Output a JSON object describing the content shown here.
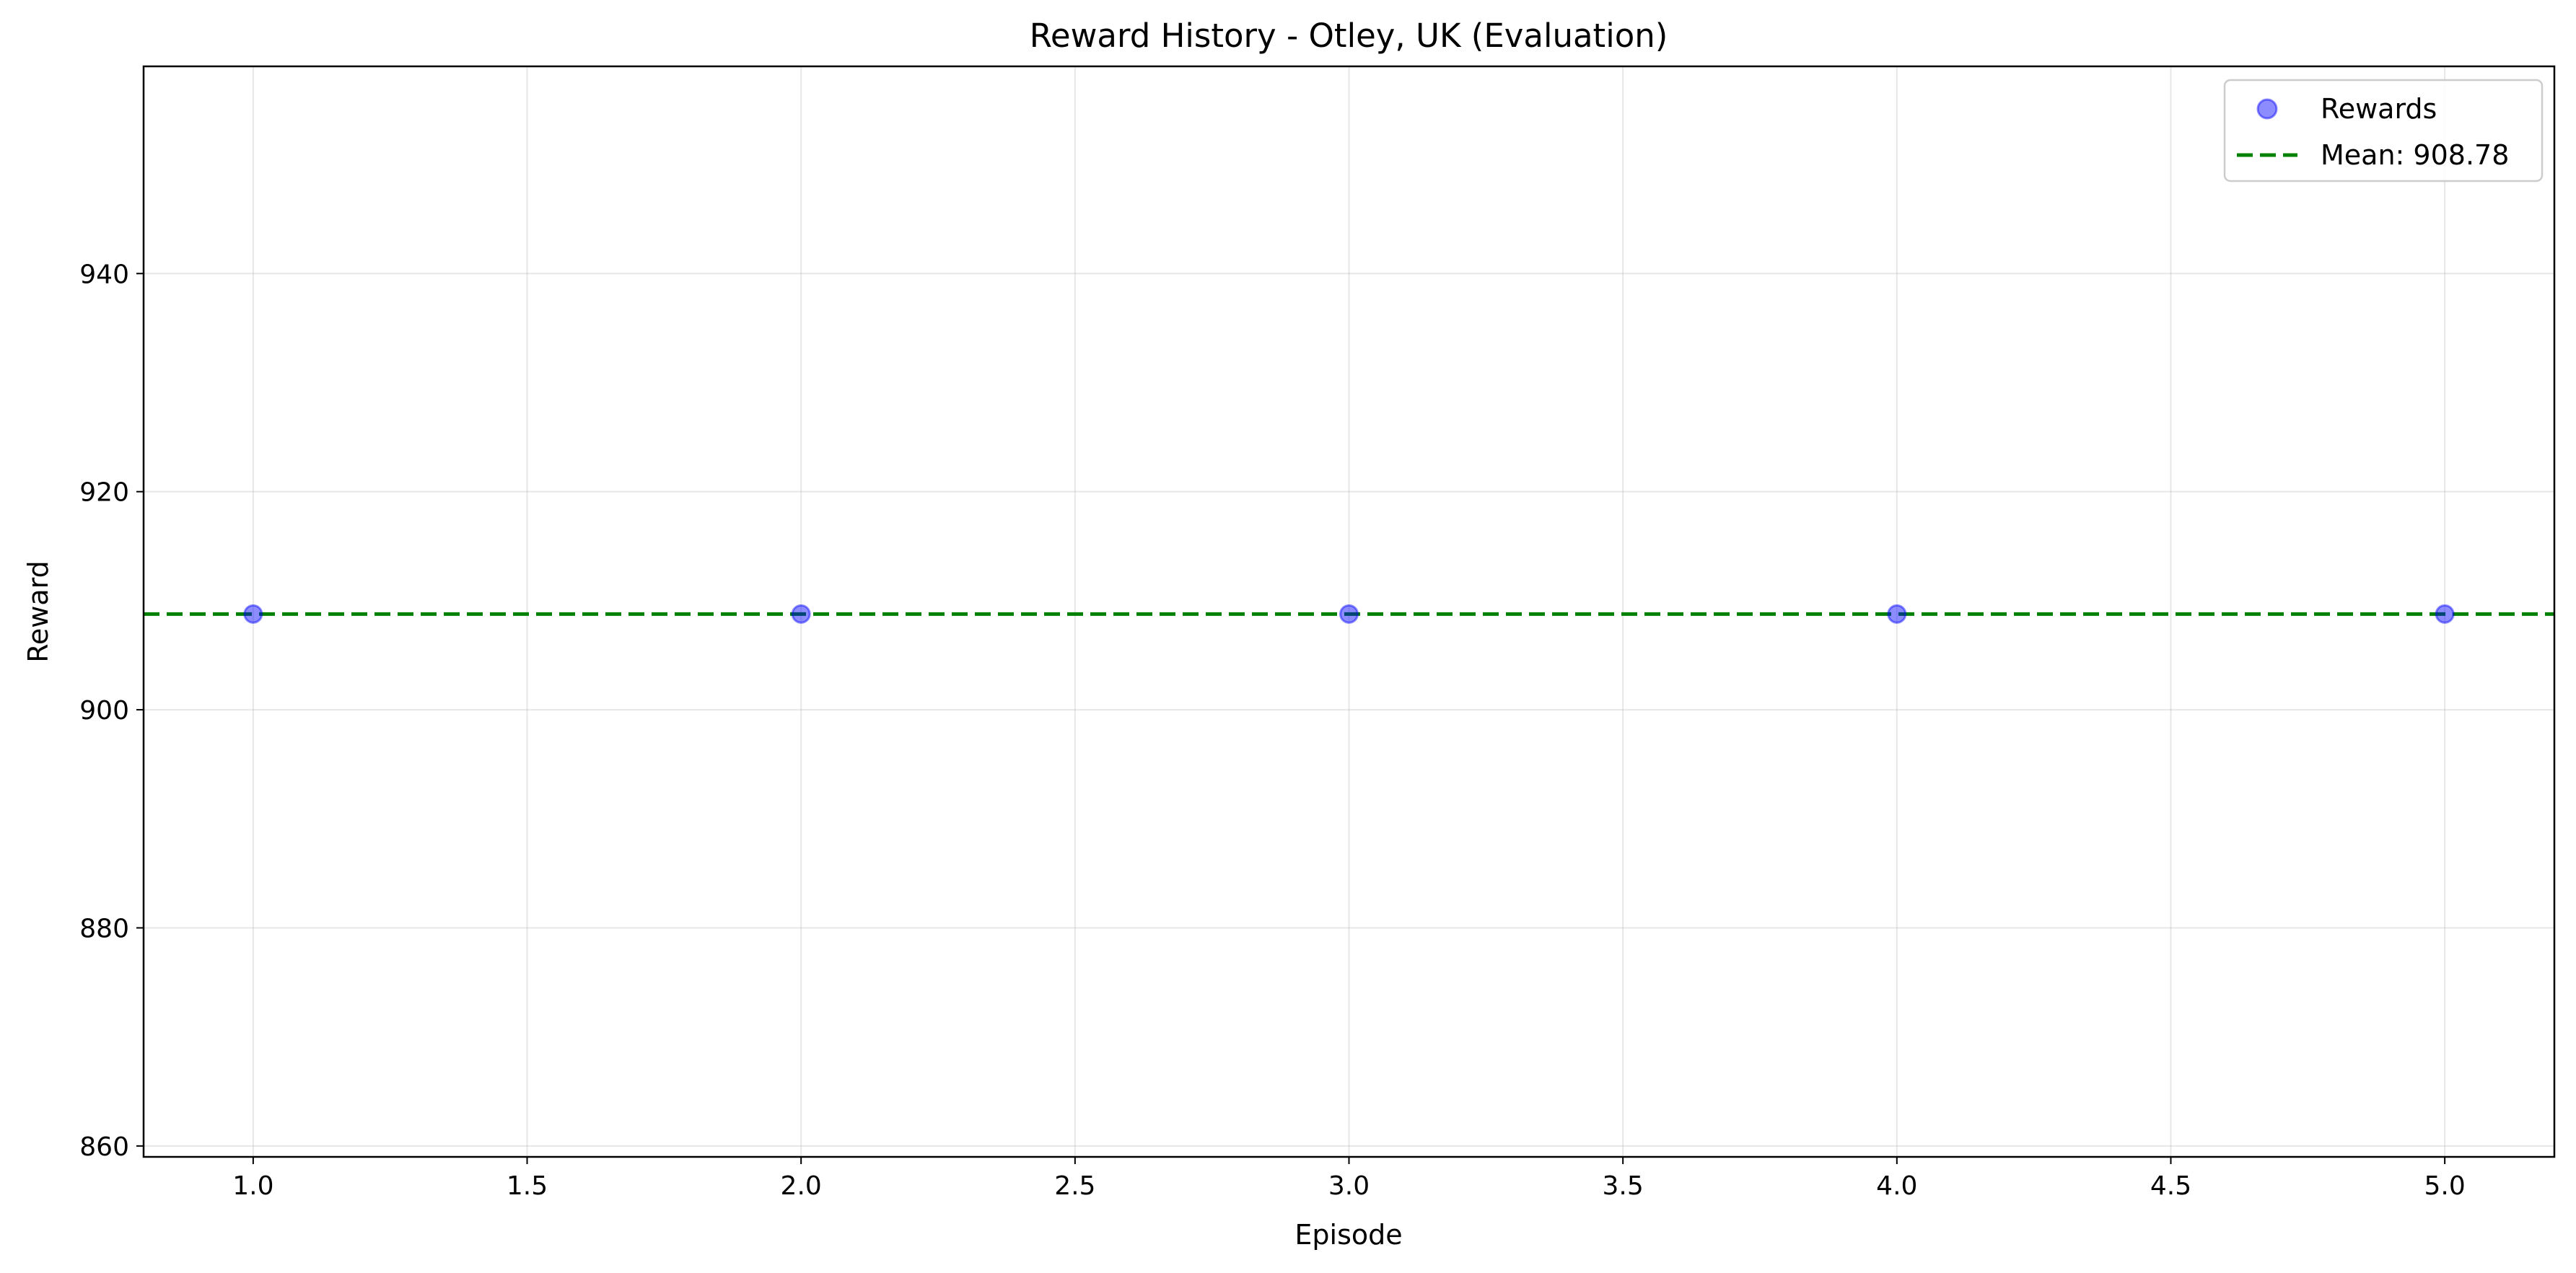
{
  "chart_data": {
    "type": "scatter",
    "title": "Reward History - Otley, UK (Evaluation)",
    "xlabel": "Episode",
    "ylabel": "Reward",
    "xlim": [
      0.8,
      5.2
    ],
    "ylim": [
      859,
      959
    ],
    "xticks": [
      "1.0",
      "1.5",
      "2.0",
      "2.5",
      "3.0",
      "3.5",
      "4.0",
      "4.5",
      "5.0"
    ],
    "xtick_values": [
      1.0,
      1.5,
      2.0,
      2.5,
      3.0,
      3.5,
      4.0,
      4.5,
      5.0
    ],
    "yticks": [
      "860",
      "880",
      "900",
      "920",
      "940"
    ],
    "ytick_values": [
      860,
      880,
      900,
      920,
      940
    ],
    "grid": true,
    "legend_position": "top-right",
    "series": [
      {
        "name": "Rewards",
        "kind": "scatter",
        "color": "#0000ff",
        "x": [
          1,
          2,
          3,
          4,
          5
        ],
        "y": [
          908.78,
          908.78,
          908.78,
          908.78,
          908.78
        ]
      },
      {
        "name": "Mean: 908.78",
        "kind": "hline",
        "color": "#008000",
        "style": "dashed",
        "y": 908.78
      }
    ]
  }
}
